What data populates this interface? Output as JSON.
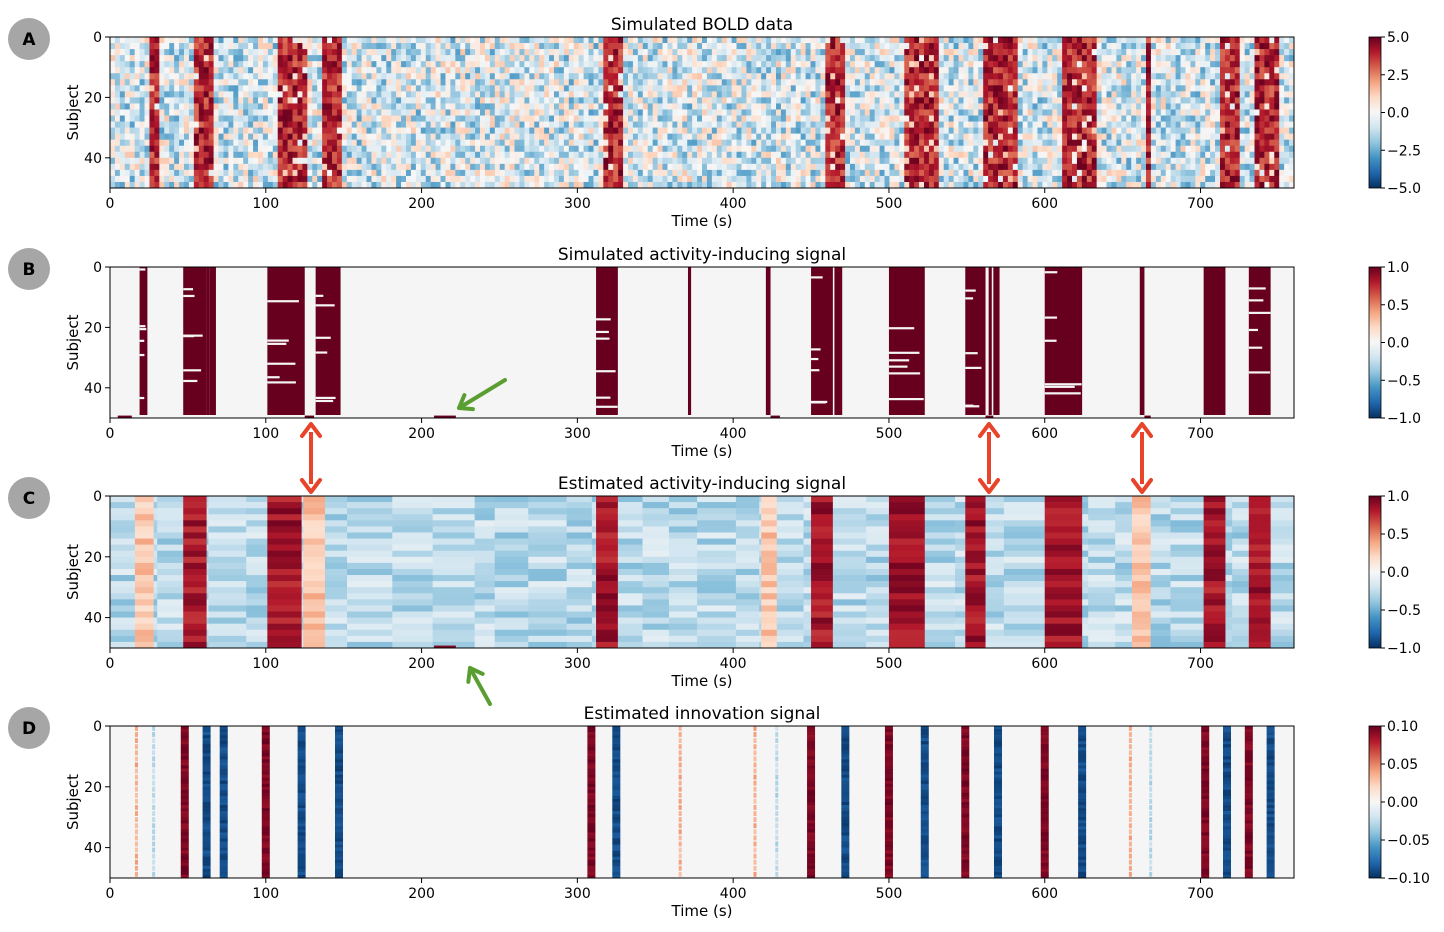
{
  "figure": {
    "ylabel": "Subject",
    "xlabel": "Time (s)"
  },
  "chart_data": [
    {
      "type": "heatmap",
      "panel_label": "A",
      "title": "Simulated BOLD data",
      "xlabel": "Time (s)",
      "ylabel": "Subject",
      "xlim": [
        0,
        760
      ],
      "ylim": [
        50,
        0
      ],
      "x_ticks": [
        0,
        100,
        200,
        300,
        400,
        500,
        600,
        700
      ],
      "y_ticks": [
        0,
        20,
        40
      ],
      "colorbar_ticks": [
        "5.0",
        "2.5",
        "0.0",
        "−2.5",
        "−5.0"
      ],
      "colorbar_range": [
        -5,
        5
      ],
      "colormap": "RdBu_r",
      "active_bands_s": [
        [
          24,
          31
        ],
        [
          54,
          68
        ],
        [
          107,
          128
        ],
        [
          137,
          148
        ],
        [
          318,
          329
        ],
        [
          459,
          472
        ],
        [
          510,
          532
        ],
        [
          562,
          582
        ],
        [
          610,
          632
        ],
        [
          664,
          669
        ],
        [
          712,
          724
        ],
        [
          736,
          750
        ]
      ],
      "background": "noise"
    },
    {
      "type": "heatmap",
      "panel_label": "B",
      "title": "Simulated activity-inducing signal",
      "xlabel": "Time (s)",
      "ylabel": "Subject",
      "xlim": [
        0,
        760
      ],
      "ylim": [
        50,
        0
      ],
      "x_ticks": [
        0,
        100,
        200,
        300,
        400,
        500,
        600,
        700
      ],
      "y_ticks": [
        0,
        20,
        40
      ],
      "colorbar_ticks": [
        "1.0",
        "0.5",
        "0.0",
        "−0.5",
        "−1.0"
      ],
      "colorbar_range": [
        -1,
        1
      ],
      "colormap": "RdBu_r",
      "active_bands_s": [
        [
          19,
          24
        ],
        [
          47,
          62
        ],
        [
          62,
          64
        ],
        [
          64,
          68
        ],
        [
          101,
          125
        ],
        [
          132,
          148
        ],
        [
          312,
          326
        ],
        [
          371,
          373
        ],
        [
          421,
          424
        ],
        [
          450,
          464
        ],
        [
          465,
          470
        ],
        [
          500,
          523
        ],
        [
          549,
          562
        ],
        [
          564,
          566
        ],
        [
          567,
          571
        ],
        [
          600,
          624
        ],
        [
          661,
          664
        ],
        [
          702,
          716
        ],
        [
          731,
          745
        ]
      ],
      "background": "empty"
    },
    {
      "type": "heatmap",
      "panel_label": "C",
      "title": "Estimated activity-inducing signal",
      "xlabel": "Time (s)",
      "ylabel": "Subject",
      "xlim": [
        0,
        760
      ],
      "ylim": [
        50,
        0
      ],
      "x_ticks": [
        0,
        100,
        200,
        300,
        400,
        500,
        600,
        700
      ],
      "y_ticks": [
        0,
        20,
        40
      ],
      "colorbar_ticks": [
        "1.0",
        "0.5",
        "0.0",
        "−0.5",
        "−1.0"
      ],
      "colorbar_range": [
        -1,
        1
      ],
      "colormap": "RdBu_r",
      "active_bands_s": [
        [
          47,
          62
        ],
        [
          101,
          123
        ],
        [
          312,
          326
        ],
        [
          450,
          464
        ],
        [
          500,
          523
        ],
        [
          549,
          562
        ],
        [
          600,
          624
        ],
        [
          702,
          716
        ],
        [
          731,
          745
        ]
      ],
      "weak_bands_s": [
        [
          16,
          28
        ],
        [
          124,
          138
        ],
        [
          418,
          428
        ],
        [
          656,
          668
        ]
      ],
      "background": "blocks"
    },
    {
      "type": "heatmap",
      "panel_label": "D",
      "title": "Estimated innovation signal",
      "xlabel": "Time (s)",
      "ylabel": "Subject",
      "xlim": [
        0,
        760
      ],
      "ylim": [
        50,
        0
      ],
      "x_ticks": [
        0,
        100,
        200,
        300,
        400,
        500,
        600,
        700
      ],
      "y_ticks": [
        0,
        20,
        40
      ],
      "colorbar_ticks": [
        "0.10",
        "0.05",
        "0.00",
        "−0.05",
        "−0.10"
      ],
      "colorbar_range": [
        -0.1,
        0.1
      ],
      "colormap": "RdBu_r",
      "positive_lines_s": [
        48,
        100,
        309,
        450,
        500,
        549,
        600,
        703,
        731
      ],
      "negative_lines_s": [
        62,
        73,
        123,
        147,
        325,
        472,
        523,
        570,
        624,
        717,
        745
      ],
      "weak_positive_lines_s": [
        17,
        366,
        414,
        655
      ],
      "weak_negative_lines_s": [
        28,
        428,
        668
      ],
      "background": "empty"
    }
  ]
}
